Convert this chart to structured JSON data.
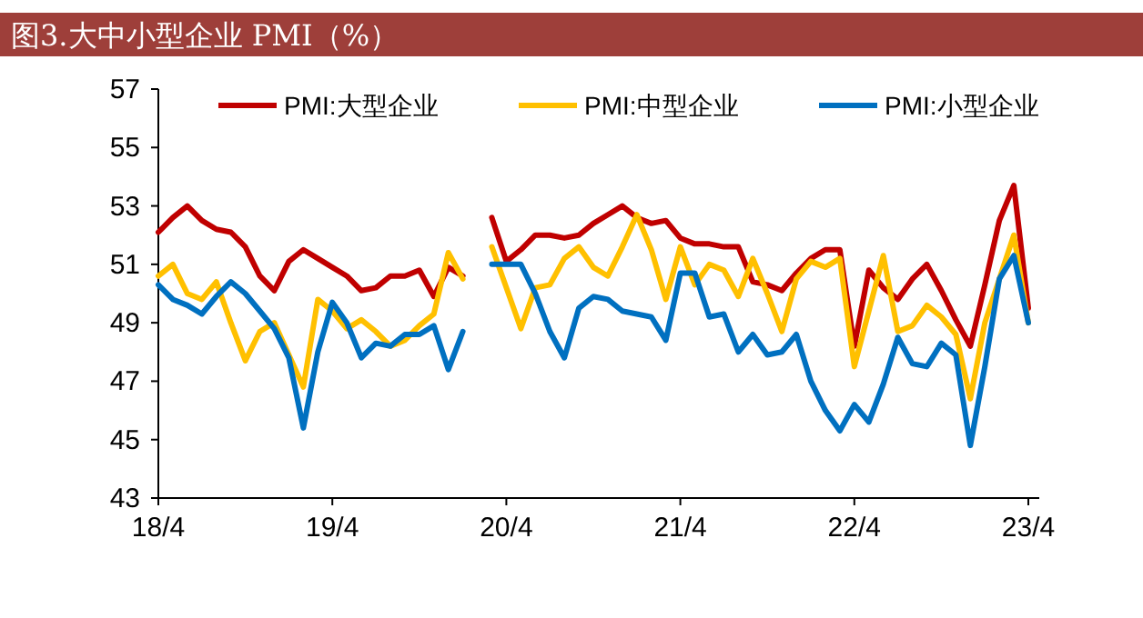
{
  "chart_data": {
    "type": "line",
    "title": "图3.大中小型企业 PMI（%）",
    "categories": [
      "18/4",
      null,
      null,
      null,
      null,
      null,
      null,
      null,
      null,
      null,
      null,
      null,
      "19/4",
      null,
      null,
      null,
      null,
      null,
      null,
      null,
      null,
      null,
      null,
      null,
      "20/4",
      null,
      null,
      null,
      null,
      null,
      null,
      null,
      null,
      null,
      null,
      null,
      "21/4",
      null,
      null,
      null,
      null,
      null,
      null,
      null,
      null,
      null,
      null,
      null,
      "22/4",
      null,
      null,
      null,
      null,
      null,
      null,
      null,
      null,
      null,
      null,
      null,
      "23/4"
    ],
    "series": [
      {
        "name": "PMI:大型企业",
        "color": "#c00000",
        "values": [
          52.1,
          52.6,
          53.0,
          52.5,
          52.2,
          52.1,
          51.6,
          50.6,
          50.1,
          51.1,
          51.5,
          51.2,
          50.9,
          50.6,
          50.1,
          50.2,
          50.6,
          50.6,
          50.8,
          49.9,
          50.9,
          50.6,
          null,
          52.6,
          51.1,
          51.5,
          52.0,
          52.0,
          51.9,
          52.0,
          52.4,
          52.7,
          53.0,
          52.6,
          52.4,
          52.5,
          51.9,
          51.7,
          51.7,
          51.6,
          51.6,
          50.4,
          50.3,
          50.1,
          50.7,
          51.2,
          51.5,
          51.5,
          48.2,
          50.8,
          50.2,
          49.8,
          50.5,
          51.0,
          50.1,
          49.1,
          48.2,
          50.3,
          52.5,
          53.7,
          49.5
        ]
      },
      {
        "name": "PMI:中型企业",
        "color": "#ffc000",
        "values": [
          50.6,
          51.0,
          50.0,
          49.8,
          50.4,
          49.0,
          47.7,
          48.7,
          49.0,
          47.9,
          46.8,
          49.8,
          49.4,
          48.8,
          49.1,
          48.7,
          48.2,
          48.4,
          48.9,
          49.3,
          51.4,
          50.5,
          null,
          51.6,
          50.2,
          48.8,
          50.2,
          50.3,
          51.2,
          51.6,
          50.9,
          50.6,
          51.6,
          52.7,
          51.5,
          49.8,
          51.6,
          50.3,
          51.0,
          50.8,
          49.9,
          51.2,
          50.0,
          48.7,
          50.5,
          51.1,
          50.9,
          51.2,
          47.5,
          49.4,
          51.3,
          48.7,
          48.9,
          49.6,
          49.2,
          48.6,
          46.4,
          49.0,
          50.5,
          52.0,
          49.0
        ]
      },
      {
        "name": "PMI:小型企业",
        "color": "#0070c0",
        "values": [
          50.3,
          49.8,
          49.6,
          49.3,
          49.9,
          50.4,
          50.0,
          49.4,
          48.8,
          47.8,
          45.4,
          48.0,
          49.7,
          49.0,
          47.8,
          48.3,
          48.2,
          48.6,
          48.6,
          48.9,
          47.4,
          48.7,
          null,
          51.0,
          51.0,
          51.0,
          50.0,
          48.7,
          47.8,
          49.5,
          49.9,
          49.8,
          49.4,
          49.3,
          49.2,
          48.4,
          50.7,
          50.7,
          49.2,
          49.3,
          48.0,
          48.6,
          47.9,
          48.0,
          48.6,
          47.0,
          46.0,
          45.3,
          46.2,
          45.6,
          46.9,
          48.5,
          47.6,
          47.5,
          48.3,
          47.9,
          44.8,
          47.5,
          50.5,
          51.3,
          49.0
        ]
      }
    ],
    "ylim": [
      43,
      57
    ],
    "yticks": [
      43,
      45,
      47,
      49,
      51,
      53,
      55,
      57
    ],
    "legend": "top",
    "grid": false
  }
}
